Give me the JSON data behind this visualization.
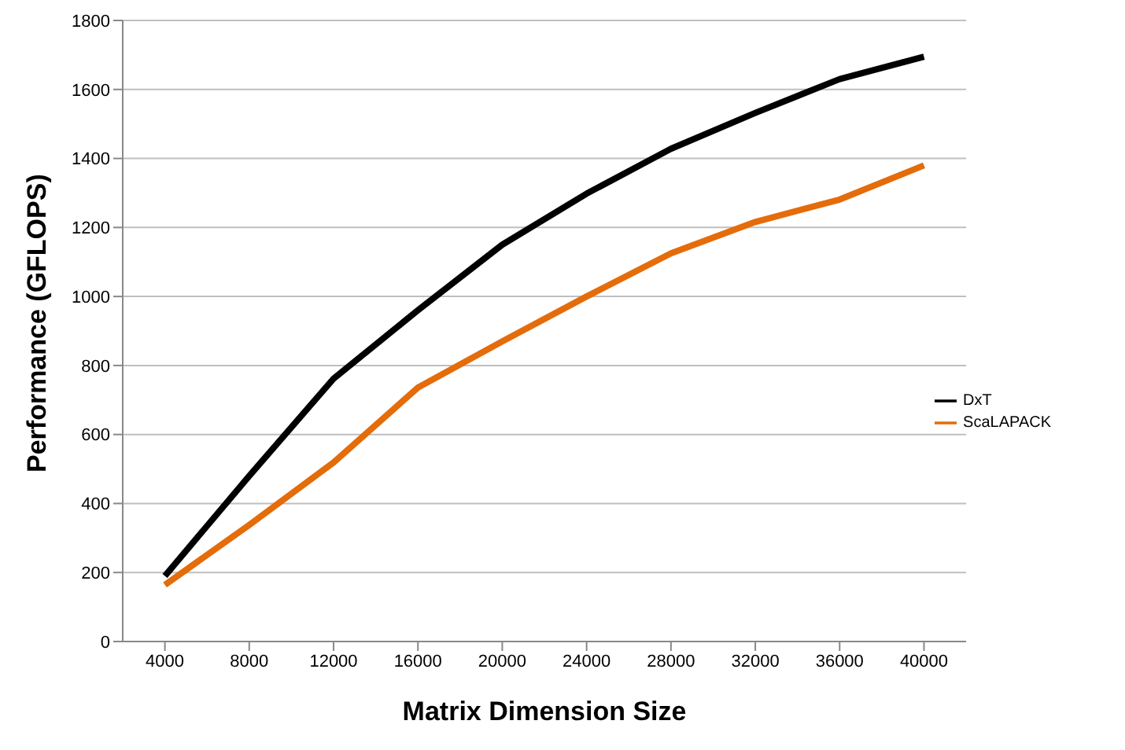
{
  "chart_data": {
    "type": "line",
    "xlabel": "Matrix Dimension Size",
    "ylabel": "Performance (GFLOPS)",
    "categories": [
      "4000",
      "8000",
      "12000",
      "16000",
      "20000",
      "24000",
      "28000",
      "32000",
      "36000",
      "40000"
    ],
    "series": [
      {
        "name": "DxT",
        "color": "#000000",
        "values": [
          190,
          480,
          762,
          960,
          1150,
          1298,
          1428,
          1532,
          1630,
          1695
        ]
      },
      {
        "name": "ScaLAPACK",
        "color": "#e46c0a",
        "values": [
          164,
          338,
          519,
          736,
          870,
          1000,
          1125,
          1216,
          1281,
          1380
        ]
      }
    ],
    "ylim": [
      0,
      1800
    ],
    "yticks": [
      0,
      200,
      400,
      600,
      800,
      1000,
      1200,
      1400,
      1600,
      1800
    ],
    "grid": "y",
    "legend": "right",
    "marker": "none",
    "line_style": "solid"
  }
}
